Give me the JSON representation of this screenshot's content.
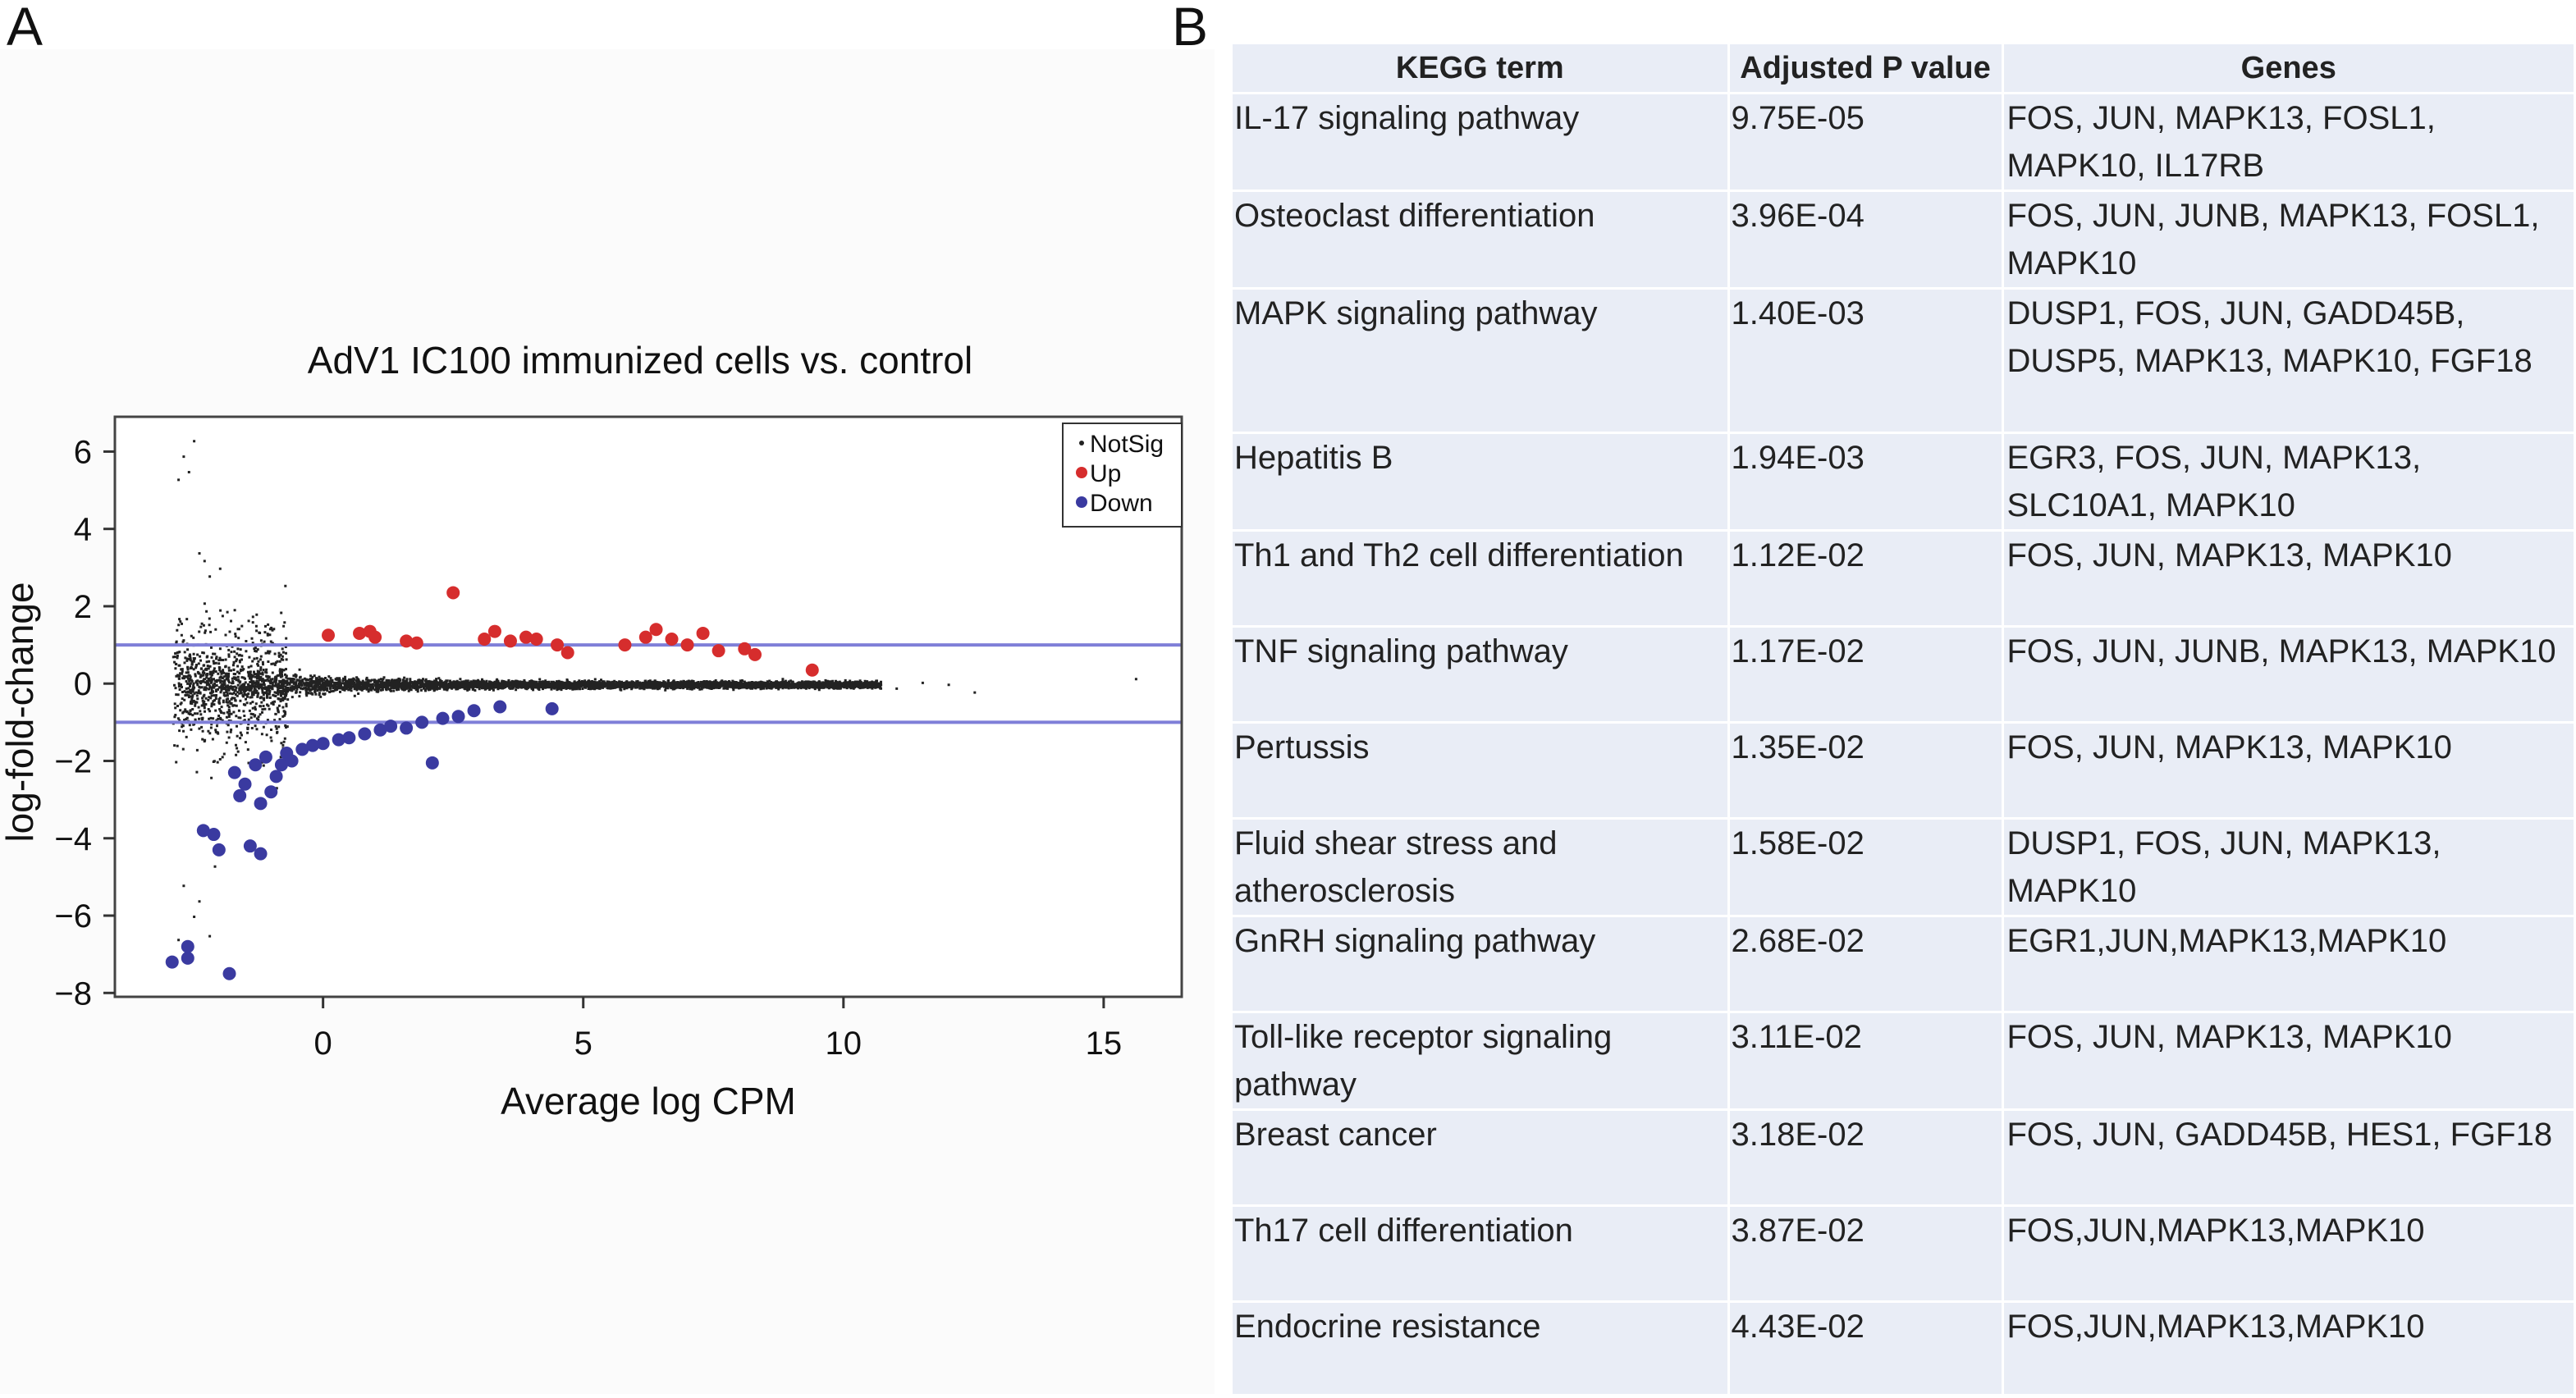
{
  "panel_labels": {
    "a": "A",
    "b": "B"
  },
  "chart_data": [
    {
      "type": "scatter",
      "title": "AdV1 IC100 immunized cells vs. control",
      "xlabel": "Average log CPM",
      "ylabel": "log-fold-change",
      "xlim": [
        -4,
        16.5
      ],
      "ylim": [
        -8.1,
        6.9
      ],
      "x_ticks": [
        0,
        5,
        10,
        15
      ],
      "x_tick_labels": [
        "0",
        "5",
        "10",
        "15"
      ],
      "y_ticks": [
        6,
        4,
        2,
        0,
        -2,
        -4,
        -6,
        -8
      ],
      "y_tick_labels": [
        "6",
        "4",
        "2",
        "0",
        "−2",
        "−4",
        "−6",
        "−8"
      ],
      "threshold_lines": [
        1,
        -1
      ],
      "grid": false,
      "legend_position": "top-right",
      "legend": [
        "NotSig",
        "Up",
        "Down"
      ],
      "colors": {
        "NotSig": "#222222",
        "Up": "#d62d2d",
        "Down": "#3a3aa0",
        "threshold": "#7f7fd8"
      },
      "series": [
        {
          "name": "Up",
          "points": [
            [
              0.1,
              1.25
            ],
            [
              0.7,
              1.3
            ],
            [
              0.9,
              1.35
            ],
            [
              1.0,
              1.2
            ],
            [
              1.6,
              1.1
            ],
            [
              1.8,
              1.05
            ],
            [
              2.5,
              2.35
            ],
            [
              3.1,
              1.15
            ],
            [
              3.3,
              1.35
            ],
            [
              3.6,
              1.1
            ],
            [
              3.9,
              1.2
            ],
            [
              4.1,
              1.15
            ],
            [
              4.5,
              1.0
            ],
            [
              4.7,
              0.8
            ],
            [
              5.8,
              1.0
            ],
            [
              6.2,
              1.2
            ],
            [
              6.4,
              1.4
            ],
            [
              6.7,
              1.15
            ],
            [
              7.0,
              1.0
            ],
            [
              7.3,
              1.3
            ],
            [
              7.6,
              0.85
            ],
            [
              8.1,
              0.9
            ],
            [
              8.3,
              0.75
            ],
            [
              9.4,
              0.35
            ]
          ]
        },
        {
          "name": "Down",
          "points": [
            [
              -2.9,
              -7.2
            ],
            [
              -2.6,
              -7.1
            ],
            [
              -2.6,
              -6.8
            ],
            [
              -2.3,
              -3.8
            ],
            [
              -2.1,
              -3.9
            ],
            [
              -2.0,
              -4.3
            ],
            [
              -1.8,
              -7.5
            ],
            [
              -1.7,
              -2.3
            ],
            [
              -1.6,
              -2.9
            ],
            [
              -1.5,
              -2.6
            ],
            [
              -1.4,
              -4.2
            ],
            [
              -1.3,
              -2.1
            ],
            [
              -1.2,
              -3.1
            ],
            [
              -1.2,
              -4.4
            ],
            [
              -1.1,
              -1.9
            ],
            [
              -1.0,
              -2.8
            ],
            [
              -0.9,
              -2.4
            ],
            [
              -0.8,
              -2.1
            ],
            [
              -0.7,
              -1.8
            ],
            [
              -0.6,
              -2.0
            ],
            [
              -0.4,
              -1.7
            ],
            [
              -0.2,
              -1.6
            ],
            [
              0.0,
              -1.55
            ],
            [
              0.3,
              -1.45
            ],
            [
              0.5,
              -1.4
            ],
            [
              0.8,
              -1.3
            ],
            [
              1.1,
              -1.2
            ],
            [
              1.3,
              -1.1
            ],
            [
              1.6,
              -1.15
            ],
            [
              1.9,
              -1.0
            ],
            [
              2.1,
              -2.05
            ],
            [
              2.3,
              -0.9
            ],
            [
              2.6,
              -0.85
            ],
            [
              2.9,
              -0.7
            ],
            [
              3.4,
              -0.6
            ],
            [
              4.4,
              -0.65
            ]
          ]
        }
      ]
    },
    {
      "type": "table",
      "columns": [
        "KEGG term",
        "Adjusted P value",
        "Genes"
      ],
      "rows": [
        {
          "term": "IL-17 signaling pathway",
          "p": "9.75E-05",
          "genes": "FOS, JUN, MAPK13, FOSL1, MAPK10, IL17RB"
        },
        {
          "term": "Osteoclast differentiation",
          "p": "3.96E-04",
          "genes": "FOS, JUN, JUNB, MAPK13, FOSL1, MAPK10"
        },
        {
          "term": "MAPK signaling pathway",
          "p": "1.40E-03",
          "genes": "DUSP1, FOS, JUN, GADD45B, DUSP5, MAPK13, MAPK10, FGF18"
        },
        {
          "term": "Hepatitis B",
          "p": "1.94E-03",
          "genes": "EGR3, FOS, JUN, MAPK13, SLC10A1, MAPK10"
        },
        {
          "term": "Th1 and Th2 cell differentiation",
          "p": "1.12E-02",
          "genes": "FOS, JUN, MAPK13, MAPK10"
        },
        {
          "term": "TNF signaling pathway",
          "p": "1.17E-02",
          "genes": "FOS, JUN, JUNB, MAPK13, MAPK10"
        },
        {
          "term": "Pertussis",
          "p": "1.35E-02",
          "genes": "FOS, JUN, MAPK13, MAPK10"
        },
        {
          "term": "Fluid shear stress and atherosclerosis",
          "p": "1.58E-02",
          "genes": "DUSP1, FOS, JUN, MAPK13, MAPK10"
        },
        {
          "term": "GnRH signaling pathway",
          "p": "2.68E-02",
          "genes": "EGR1,JUN,MAPK13,MAPK10"
        },
        {
          "term": "Toll-like receptor signaling pathway",
          "p": "3.11E-02",
          "genes": "FOS, JUN, MAPK13, MAPK10"
        },
        {
          "term": "Breast cancer",
          "p": "3.18E-02",
          "genes": "FOS, JUN, GADD45B, HES1, FGF18"
        },
        {
          "term": "Th17 cell differentiation",
          "p": "3.87E-02",
          "genes": "FOS,JUN,MAPK13,MAPK10"
        },
        {
          "term": "Endocrine resistance",
          "p": "4.43E-02",
          "genes": "FOS,JUN,MAPK13,MAPK10"
        }
      ]
    }
  ]
}
